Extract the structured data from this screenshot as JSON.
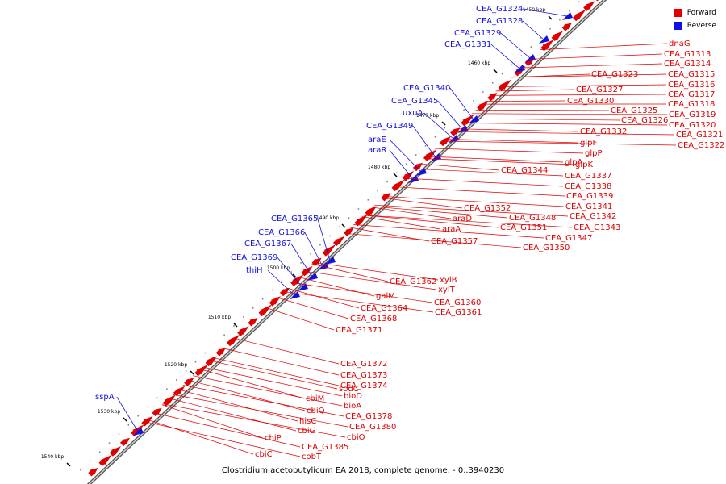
{
  "colors": {
    "forward": "#e00000",
    "reverse": "#1010e0",
    "backbone": "#888888",
    "tick": "#000000"
  },
  "legend": {
    "forward_label": "Forward",
    "reverse_label": "Reverse"
  },
  "caption": "Clostridium acetobutylicum EA 2018, complete genome. - 0..3940230",
  "scale_ticks": [
    "1450 kbp",
    "1460 kbp",
    "1470 kbp",
    "1480 kbp",
    "1490 kbp",
    "1500 kbp",
    "1510 kbp",
    "1520 kbp",
    "1530 kbp",
    "1540 kbp"
  ],
  "reverse_labels": [
    "CEA_G1324",
    "CEA_G1328",
    "CEA_G1329",
    "CEA_G1331",
    "CEA_G1340",
    "CEA_G1345",
    "uxuA",
    "CEA_G1349",
    "araE",
    "araR",
    "CEA_G1365",
    "CEA_G1366",
    "CEA_G1367",
    "CEA_G1369",
    "thiH",
    "sspA"
  ],
  "forward_labels": [
    "dnaG",
    "CEA_G1313",
    "CEA_G1314",
    "CEA_G1315",
    "CEA_G1316",
    "CEA_G1317",
    "CEA_G1318",
    "CEA_G1319",
    "CEA_G1320",
    "CEA_G1321",
    "CEA_G1322",
    "CEA_G1323",
    "CEA_G1327",
    "CEA_G1330",
    "CEA_G1325",
    "CEA_G1326",
    "CEA_G1332",
    "glpF",
    "glpP",
    "glpA",
    "glpK",
    "CEA_G1344",
    "CEA_G1337",
    "CEA_G1338",
    "CEA_G1339",
    "CEA_G1341",
    "CEA_G1342",
    "CEA_G1343",
    "CEA_G1352",
    "CEA_G1348",
    "CEA_G1351",
    "CEA_G1347",
    "CEA_G1350",
    "araD",
    "araA",
    "CEA_G1357",
    "xylB",
    "CEA_G1362",
    "xylT",
    "galM",
    "CEA_G1360",
    "CEA_G1364",
    "CEA_G1361",
    "CEA_G1368",
    "CEA_G1371",
    "CEA_G1372",
    "CEA_G1373",
    "CEA_G1374",
    "sodC",
    "bioD",
    "cbiM",
    "bioA",
    "cbiQ",
    "CEA_G1378",
    "hisC",
    "CEA_G1380",
    "cbiG",
    "cbiO",
    "cbiP",
    "CEA_G1385",
    "cbiC",
    "cobT"
  ]
}
